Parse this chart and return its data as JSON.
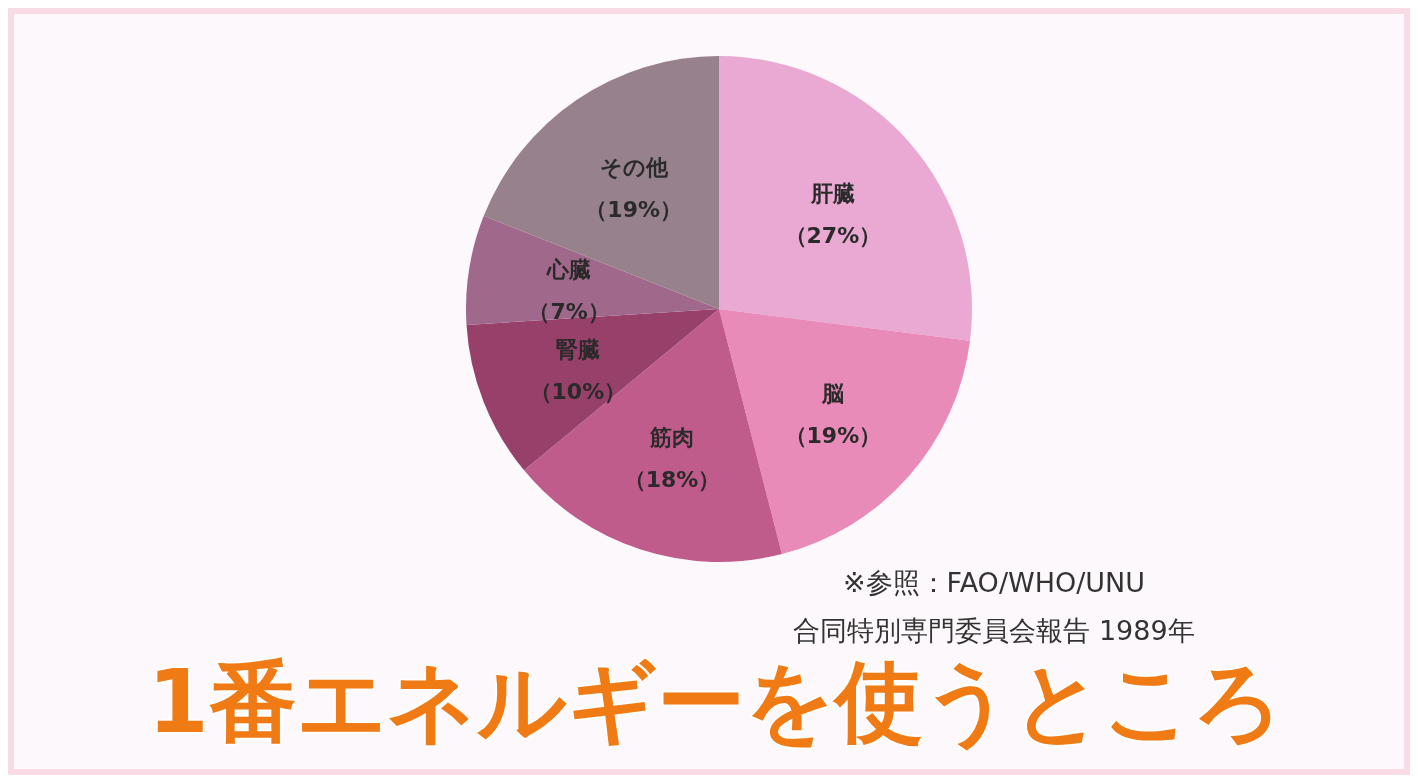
{
  "chart_data": {
    "type": "pie",
    "title": "1番エネルギーを使うところ",
    "categories": [
      "肝臓",
      "脳",
      "筋肉",
      "腎臓",
      "心臓",
      "その他"
    ],
    "values": [
      27,
      19,
      18,
      10,
      7,
      19
    ],
    "value_labels": [
      "（27%）",
      "（19%）",
      "（18%）",
      "（10%）",
      "（7%）",
      "（19%）"
    ],
    "colors": [
      "#e9a9d2",
      "#e98bb9",
      "#c05c8c",
      "#96406a",
      "#a0688a",
      "#97818c"
    ],
    "annotations": [
      "※参照：FAO/WHO/UNU",
      "合同特別専門委員会報告 1989年"
    ],
    "legend": false
  }
}
